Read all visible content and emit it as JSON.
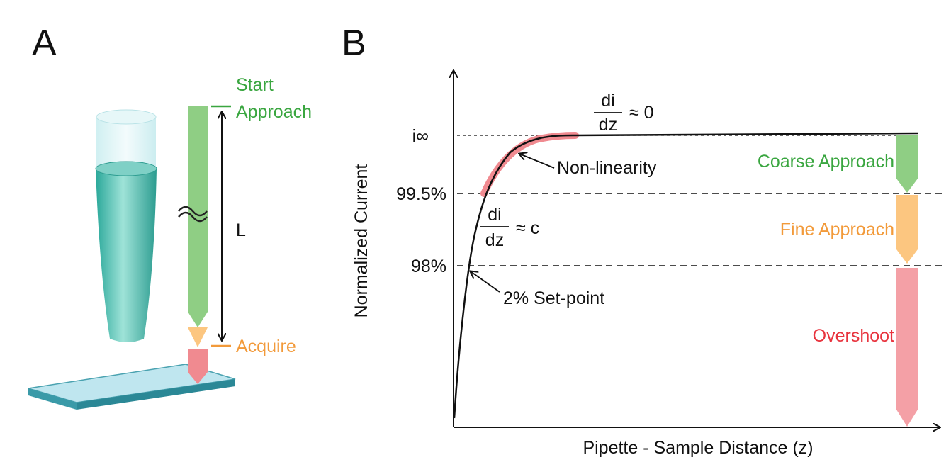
{
  "panel_a": {
    "label": "A",
    "start_line1": "Start",
    "start_line2": "Approach",
    "length_label": "L",
    "acquire": "Acquire"
  },
  "panel_b": {
    "label": "B",
    "y_axis_title": "Normalized Current",
    "x_axis_title": "Pipette - Sample Distance (z)",
    "y_labels": [
      "i∞",
      "99.5%",
      "98%"
    ],
    "slope_zero": {
      "numerator": "di",
      "denominator": "dz",
      "approx": "≈ 0"
    },
    "slope_c": {
      "numerator": "di",
      "denominator": "dz",
      "approx": "≈ c"
    },
    "nonlinearity": "Non-linearity",
    "setpoint": "2% Set-point",
    "coarse": "Coarse Approach",
    "fine": "Fine Approach",
    "overshoot": "Overshoot"
  }
}
